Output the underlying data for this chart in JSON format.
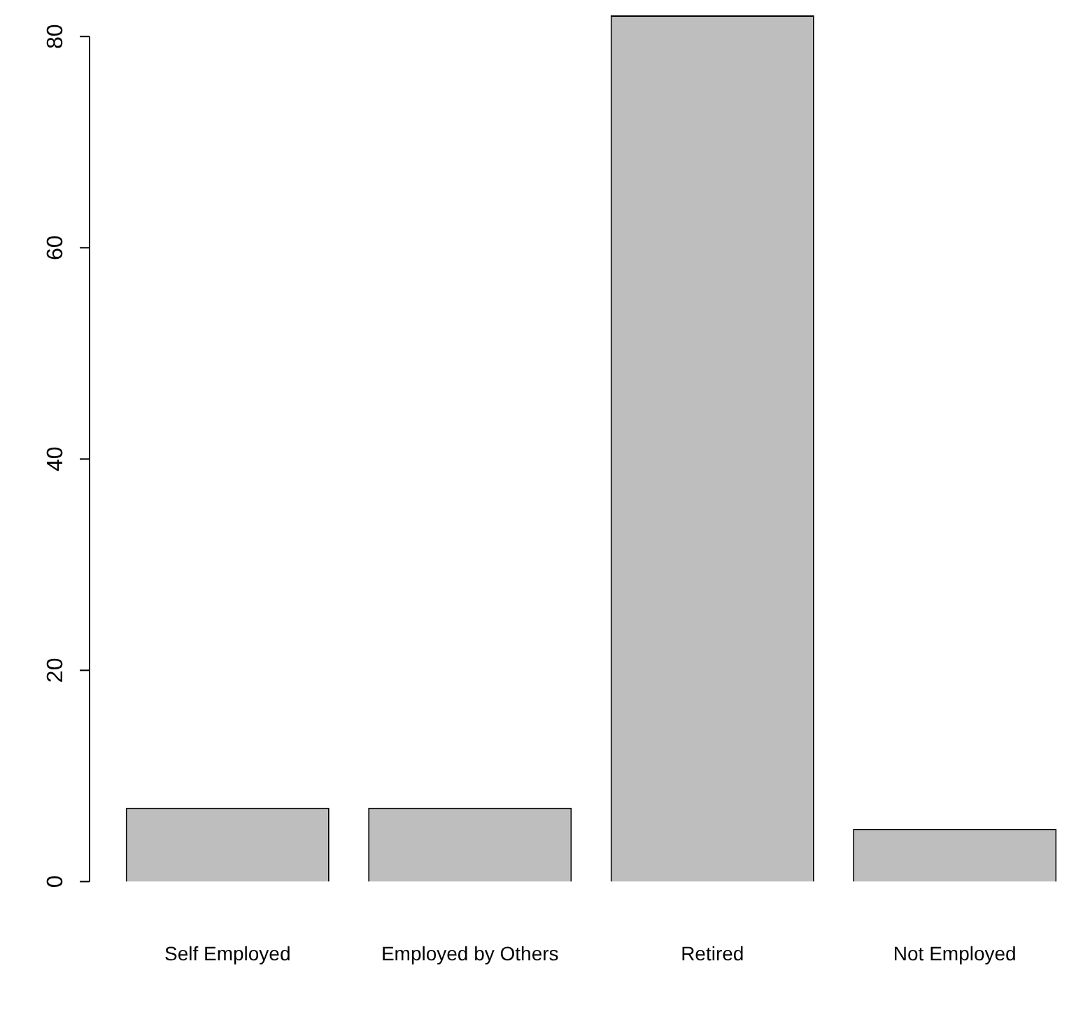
{
  "chart_data": {
    "type": "bar",
    "categories": [
      "Self Employed",
      "Employed by Others",
      "Retired",
      "Not Employed"
    ],
    "values": [
      7,
      7,
      82,
      5
    ],
    "color": "#bebebe",
    "ylim": [
      0,
      82
    ],
    "yticks": [
      0,
      20,
      40,
      60,
      80
    ],
    "grid": false,
    "legend": false
  }
}
